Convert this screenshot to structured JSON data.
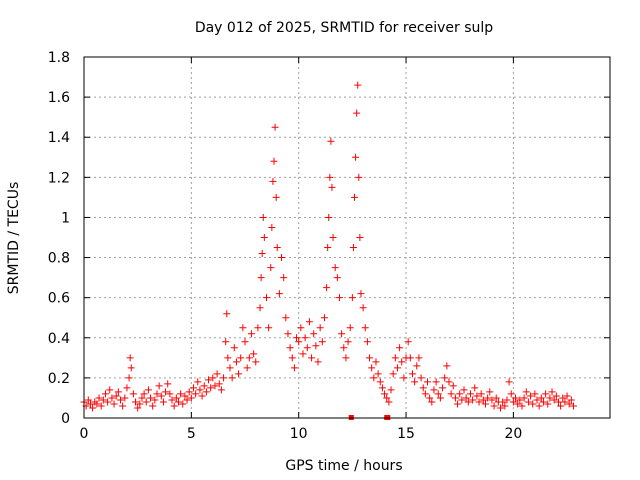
{
  "chart_data": {
    "type": "scatter",
    "title": "Day 012 of 2025, SRMTID for receiver sulp",
    "xlabel": "GPS time / hours",
    "ylabel": "SRMTID / TECUs",
    "xlim": [
      0,
      24.5
    ],
    "ylim": [
      0,
      1.8
    ],
    "xticks": [
      0,
      5,
      10,
      15,
      20
    ],
    "xtick_labels": [
      "0",
      "5",
      "10",
      "15",
      "20"
    ],
    "yticks": [
      0,
      0.2,
      0.4,
      0.6,
      0.8,
      1,
      1.2,
      1.4,
      1.6,
      1.8
    ],
    "ytick_labels": [
      "0",
      "0.2",
      "0.4",
      "0.6",
      "0.8",
      "1",
      "1.2",
      "1.4",
      "1.6",
      "1.8"
    ],
    "grid": true,
    "marker": "+",
    "color": "#ff0000",
    "series": [
      {
        "name": "SRMTID",
        "points": [
          [
            0.0,
            0.08
          ],
          [
            0.1,
            0.06
          ],
          [
            0.2,
            0.09
          ],
          [
            0.3,
            0.07
          ],
          [
            0.4,
            0.05
          ],
          [
            0.5,
            0.08
          ],
          [
            0.6,
            0.07
          ],
          [
            0.7,
            0.1
          ],
          [
            0.8,
            0.06
          ],
          [
            0.9,
            0.09
          ],
          [
            1.0,
            0.12
          ],
          [
            1.1,
            0.08
          ],
          [
            1.2,
            0.14
          ],
          [
            1.3,
            0.1
          ],
          [
            1.4,
            0.07
          ],
          [
            1.5,
            0.11
          ],
          [
            1.6,
            0.13
          ],
          [
            1.7,
            0.09
          ],
          [
            1.8,
            0.06
          ],
          [
            1.9,
            0.1
          ],
          [
            2.0,
            0.15
          ],
          [
            2.1,
            0.2
          ],
          [
            2.15,
            0.3
          ],
          [
            2.2,
            0.25
          ],
          [
            2.3,
            0.12
          ],
          [
            2.4,
            0.08
          ],
          [
            2.5,
            0.05
          ],
          [
            2.6,
            0.07
          ],
          [
            2.7,
            0.1
          ],
          [
            2.8,
            0.12
          ],
          [
            2.9,
            0.08
          ],
          [
            3.0,
            0.14
          ],
          [
            3.1,
            0.1
          ],
          [
            3.2,
            0.06
          ],
          [
            3.3,
            0.09
          ],
          [
            3.4,
            0.12
          ],
          [
            3.5,
            0.16
          ],
          [
            3.6,
            0.11
          ],
          [
            3.7,
            0.08
          ],
          [
            3.8,
            0.13
          ],
          [
            3.9,
            0.17
          ],
          [
            4.0,
            0.12
          ],
          [
            4.1,
            0.09
          ],
          [
            4.2,
            0.06
          ],
          [
            4.3,
            0.1
          ],
          [
            4.4,
            0.08
          ],
          [
            4.5,
            0.12
          ],
          [
            4.6,
            0.07
          ],
          [
            4.7,
            0.11
          ],
          [
            4.8,
            0.09
          ],
          [
            4.9,
            0.13
          ],
          [
            5.0,
            0.1
          ],
          [
            5.1,
            0.15
          ],
          [
            5.2,
            0.12
          ],
          [
            5.3,
            0.18
          ],
          [
            5.4,
            0.14
          ],
          [
            5.5,
            0.11
          ],
          [
            5.6,
            0.16
          ],
          [
            5.7,
            0.13
          ],
          [
            5.8,
            0.19
          ],
          [
            5.9,
            0.15
          ],
          [
            6.0,
            0.2
          ],
          [
            6.1,
            0.16
          ],
          [
            6.2,
            0.22
          ],
          [
            6.3,
            0.17
          ],
          [
            6.4,
            0.14
          ],
          [
            6.5,
            0.2
          ],
          [
            6.6,
            0.38
          ],
          [
            6.65,
            0.52
          ],
          [
            6.7,
            0.3
          ],
          [
            6.8,
            0.25
          ],
          [
            6.9,
            0.2
          ],
          [
            7.0,
            0.35
          ],
          [
            7.1,
            0.28
          ],
          [
            7.2,
            0.22
          ],
          [
            7.3,
            0.3
          ],
          [
            7.4,
            0.45
          ],
          [
            7.5,
            0.38
          ],
          [
            7.6,
            0.25
          ],
          [
            7.7,
            0.3
          ],
          [
            7.8,
            0.42
          ],
          [
            7.9,
            0.32
          ],
          [
            8.0,
            0.28
          ],
          [
            8.1,
            0.45
          ],
          [
            8.2,
            0.55
          ],
          [
            8.25,
            0.7
          ],
          [
            8.3,
            0.82
          ],
          [
            8.35,
            1.0
          ],
          [
            8.4,
            0.9
          ],
          [
            8.5,
            0.6
          ],
          [
            8.6,
            0.45
          ],
          [
            8.7,
            0.75
          ],
          [
            8.75,
            0.95
          ],
          [
            8.8,
            1.18
          ],
          [
            8.85,
            1.28
          ],
          [
            8.9,
            1.45
          ],
          [
            8.95,
            1.1
          ],
          [
            9.0,
            0.85
          ],
          [
            9.1,
            0.62
          ],
          [
            9.2,
            0.8
          ],
          [
            9.3,
            0.7
          ],
          [
            9.4,
            0.5
          ],
          [
            9.5,
            0.42
          ],
          [
            9.6,
            0.35
          ],
          [
            9.7,
            0.3
          ],
          [
            9.8,
            0.25
          ],
          [
            9.9,
            0.4
          ],
          [
            10.0,
            0.38
          ],
          [
            10.1,
            0.45
          ],
          [
            10.2,
            0.32
          ],
          [
            10.3,
            0.4
          ],
          [
            10.4,
            0.35
          ],
          [
            10.5,
            0.48
          ],
          [
            10.6,
            0.3
          ],
          [
            10.7,
            0.42
          ],
          [
            10.8,
            0.36
          ],
          [
            10.9,
            0.28
          ],
          [
            11.0,
            0.45
          ],
          [
            11.1,
            0.38
          ],
          [
            11.2,
            0.5
          ],
          [
            11.3,
            0.65
          ],
          [
            11.35,
            0.85
          ],
          [
            11.4,
            1.0
          ],
          [
            11.45,
            1.2
          ],
          [
            11.5,
            1.38
          ],
          [
            11.55,
            1.15
          ],
          [
            11.6,
            0.9
          ],
          [
            11.7,
            0.75
          ],
          [
            11.8,
            0.7
          ],
          [
            11.9,
            0.6
          ],
          [
            12.0,
            0.42
          ],
          [
            12.1,
            0.35
          ],
          [
            12.2,
            0.3
          ],
          [
            12.3,
            0.38
          ],
          [
            12.4,
            0.45
          ],
          [
            12.5,
            0.6
          ],
          [
            12.55,
            0.85
          ],
          [
            12.6,
            1.1
          ],
          [
            12.65,
            1.3
          ],
          [
            12.7,
            1.52
          ],
          [
            12.75,
            1.66
          ],
          [
            12.8,
            1.2
          ],
          [
            12.85,
            0.9
          ],
          [
            12.9,
            0.62
          ],
          [
            13.0,
            0.55
          ],
          [
            13.1,
            0.45
          ],
          [
            13.2,
            0.38
          ],
          [
            13.3,
            0.3
          ],
          [
            13.4,
            0.25
          ],
          [
            13.5,
            0.2
          ],
          [
            13.6,
            0.28
          ],
          [
            13.7,
            0.22
          ],
          [
            13.8,
            0.18
          ],
          [
            13.9,
            0.15
          ],
          [
            14.0,
            0.12
          ],
          [
            14.1,
            0.1
          ],
          [
            14.2,
            0.08
          ],
          [
            14.3,
            0.14
          ],
          [
            14.4,
            0.22
          ],
          [
            14.5,
            0.3
          ],
          [
            14.6,
            0.25
          ],
          [
            14.7,
            0.35
          ],
          [
            14.8,
            0.28
          ],
          [
            14.9,
            0.2
          ],
          [
            15.0,
            0.3
          ],
          [
            15.1,
            0.38
          ],
          [
            15.2,
            0.3
          ],
          [
            15.3,
            0.22
          ],
          [
            15.4,
            0.18
          ],
          [
            15.5,
            0.26
          ],
          [
            15.6,
            0.3
          ],
          [
            15.7,
            0.2
          ],
          [
            15.8,
            0.15
          ],
          [
            15.9,
            0.12
          ],
          [
            16.0,
            0.18
          ],
          [
            16.1,
            0.1
          ],
          [
            16.2,
            0.08
          ],
          [
            16.3,
            0.14
          ],
          [
            16.4,
            0.18
          ],
          [
            16.5,
            0.12
          ],
          [
            16.6,
            0.1
          ],
          [
            16.7,
            0.15
          ],
          [
            16.8,
            0.2
          ],
          [
            16.9,
            0.26
          ],
          [
            17.0,
            0.18
          ],
          [
            17.1,
            0.12
          ],
          [
            17.2,
            0.16
          ],
          [
            17.3,
            0.1
          ],
          [
            17.4,
            0.07
          ],
          [
            17.5,
            0.12
          ],
          [
            17.6,
            0.09
          ],
          [
            17.7,
            0.14
          ],
          [
            17.8,
            0.1
          ],
          [
            17.9,
            0.08
          ],
          [
            18.0,
            0.12
          ],
          [
            18.1,
            0.09
          ],
          [
            18.2,
            0.15
          ],
          [
            18.3,
            0.11
          ],
          [
            18.4,
            0.08
          ],
          [
            18.5,
            0.12
          ],
          [
            18.6,
            0.09
          ],
          [
            18.7,
            0.07
          ],
          [
            18.8,
            0.1
          ],
          [
            18.9,
            0.13
          ],
          [
            19.0,
            0.09
          ],
          [
            19.1,
            0.06
          ],
          [
            19.2,
            0.1
          ],
          [
            19.3,
            0.08
          ],
          [
            19.4,
            0.05
          ],
          [
            19.5,
            0.08
          ],
          [
            19.6,
            0.06
          ],
          [
            19.7,
            0.09
          ],
          [
            19.8,
            0.18
          ],
          [
            19.9,
            0.12
          ],
          [
            20.0,
            0.08
          ],
          [
            20.1,
            0.1
          ],
          [
            20.2,
            0.07
          ],
          [
            20.3,
            0.09
          ],
          [
            20.4,
            0.06
          ],
          [
            20.5,
            0.1
          ],
          [
            20.6,
            0.13
          ],
          [
            20.7,
            0.08
          ],
          [
            20.8,
            0.11
          ],
          [
            20.9,
            0.07
          ],
          [
            21.0,
            0.12
          ],
          [
            21.1,
            0.09
          ],
          [
            21.2,
            0.06
          ],
          [
            21.3,
            0.1
          ],
          [
            21.4,
            0.08
          ],
          [
            21.5,
            0.12
          ],
          [
            21.6,
            0.07
          ],
          [
            21.7,
            0.1
          ],
          [
            21.8,
            0.13
          ],
          [
            21.9,
            0.09
          ],
          [
            22.0,
            0.11
          ],
          [
            22.1,
            0.08
          ],
          [
            22.2,
            0.06
          ],
          [
            22.3,
            0.1
          ],
          [
            22.4,
            0.08
          ],
          [
            22.5,
            0.11
          ],
          [
            22.6,
            0.07
          ],
          [
            22.7,
            0.09
          ],
          [
            22.8,
            0.06
          ]
        ],
        "squares": [
          [
            12.45,
            0.0
          ],
          [
            14.1,
            0.0
          ],
          [
            14.15,
            0.0
          ]
        ]
      }
    ]
  }
}
